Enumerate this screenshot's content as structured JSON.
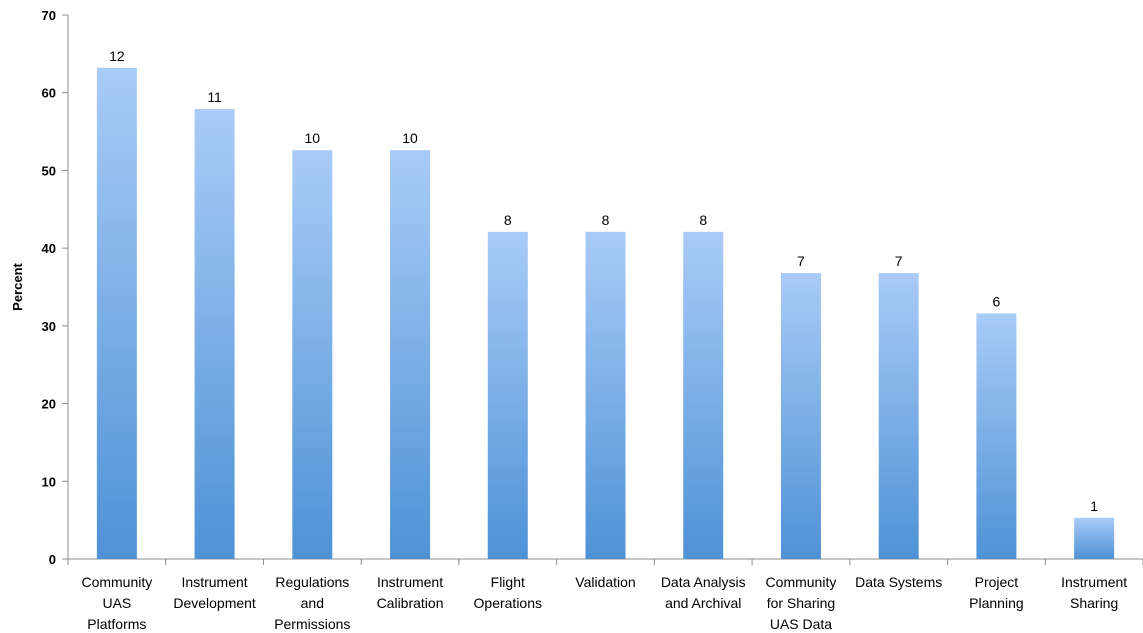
{
  "chart_data": {
    "type": "bar",
    "categories": [
      [
        "Community",
        "UAS",
        "Platforms"
      ],
      [
        "Instrument",
        "Development"
      ],
      [
        "Regulations",
        "and",
        "Permissions"
      ],
      [
        "Instrument",
        "Calibration"
      ],
      [
        "Flight",
        "Operations"
      ],
      [
        "Validation"
      ],
      [
        "Data Analysis",
        "and Archival"
      ],
      [
        "Community",
        "for Sharing",
        "UAS Data"
      ],
      [
        "Data Systems"
      ],
      [
        "Project",
        "Planning"
      ],
      [
        "Instrument",
        "Sharing"
      ]
    ],
    "values": [
      63.2,
      57.9,
      52.6,
      52.6,
      42.1,
      42.1,
      42.1,
      36.8,
      36.8,
      31.6,
      5.3
    ],
    "data_labels": [
      "12",
      "11",
      "10",
      "10",
      "8",
      "8",
      "8",
      "7",
      "7",
      "6",
      "1"
    ],
    "ylabel": "Percent",
    "xlabel": "",
    "title": "",
    "ylim": [
      0,
      70
    ],
    "yticks": [
      "0",
      "10",
      "20",
      "30",
      "40",
      "50",
      "60",
      "70"
    ],
    "grid": false,
    "legend": "none",
    "colors": {
      "bar_top": "#a9cbf7",
      "bar_bottom": "#4e92d6",
      "axis": "#8c8c8c"
    }
  }
}
